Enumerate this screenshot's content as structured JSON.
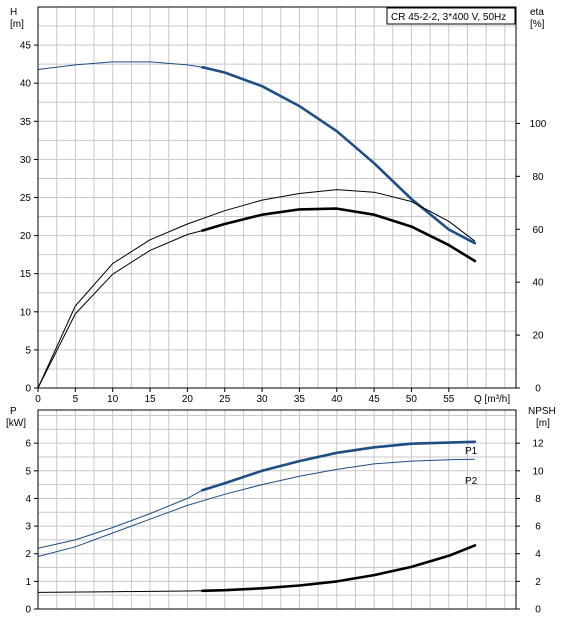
{
  "chart_data": [
    {
      "type": "line",
      "panel": "upper",
      "title": "CR 45-2-2, 3*400 V, 50Hz",
      "xlabel": "Q [m³/h]",
      "ylabel_left_name": "H",
      "ylabel_left_unit": "[m]",
      "ylabel_right_name": "eta",
      "ylabel_right_unit": "[%]",
      "xlim": [
        0,
        64
      ],
      "ylim_left": [
        0,
        50
      ],
      "ylim_right": [
        0,
        144
      ],
      "x_ticks": [
        "0",
        "5",
        "10",
        "15",
        "20",
        "25",
        "30",
        "35",
        "40",
        "45",
        "50",
        "55"
      ],
      "y_left_ticks": [
        "0",
        "5",
        "10",
        "15",
        "20",
        "25",
        "30",
        "35",
        "40",
        "45"
      ],
      "y_right_ticks": [
        "0",
        "20",
        "40",
        "60",
        "80",
        "100"
      ],
      "grid": true,
      "series": [
        {
          "name": "",
          "axis": "left",
          "color": "#1f4e85",
          "x": [
            0,
            5,
            10,
            15,
            20,
            22,
            25,
            30,
            35,
            40,
            45,
            50,
            55,
            58.5
          ],
          "y": [
            41.8,
            42.4,
            42.8,
            42.8,
            42.4,
            42.1,
            41.4,
            39.6,
            37.0,
            33.7,
            29.5,
            24.8,
            20.8,
            19.0
          ],
          "bold_from": 22
        },
        {
          "name": "",
          "axis": "right",
          "color": "#000000",
          "x": [
            0,
            5,
            10,
            15,
            20,
            22,
            25,
            30,
            35,
            40,
            45,
            50,
            55,
            58.5
          ],
          "y": [
            0,
            28,
            43,
            52,
            58,
            59.5,
            62,
            65.5,
            67.5,
            67.8,
            65.5,
            61,
            54,
            48
          ],
          "bold_from": 22
        },
        {
          "name": "",
          "axis": "right",
          "color": "#000000",
          "x": [
            0,
            5,
            10,
            15,
            20,
            25,
            30,
            35,
            40,
            45,
            50,
            55,
            58.5
          ],
          "y": [
            0,
            31,
            47,
            56,
            62,
            67,
            71,
            73.5,
            75,
            74,
            70.5,
            63,
            55.5
          ],
          "bold_from": null
        }
      ]
    },
    {
      "type": "line",
      "panel": "lower",
      "ylabel_left_name": "P",
      "ylabel_left_unit": "[kW]",
      "ylabel_right_name": "NPSH",
      "ylabel_right_unit": "[m]",
      "xlim": [
        0,
        64
      ],
      "ylim_left": [
        0,
        7.2
      ],
      "ylim_right": [
        0,
        14.4
      ],
      "y_left_ticks": [
        "0",
        "1",
        "2",
        "3",
        "4",
        "5",
        "6"
      ],
      "y_right_ticks": [
        "0",
        "2",
        "4",
        "6",
        "8",
        "10",
        "12"
      ],
      "grid": true,
      "series": [
        {
          "name": "P1",
          "axis": "left",
          "color": "#1f4e85",
          "x": [
            0,
            5,
            10,
            15,
            20,
            22,
            25,
            30,
            35,
            40,
            45,
            50,
            55,
            58.5
          ],
          "y": [
            2.2,
            2.5,
            2.95,
            3.45,
            4.0,
            4.3,
            4.55,
            5.0,
            5.35,
            5.65,
            5.85,
            5.98,
            6.02,
            6.05
          ],
          "bold_from": 22
        },
        {
          "name": "P2",
          "axis": "left",
          "color": "#1f4e85",
          "x": [
            0,
            5,
            10,
            15,
            20,
            25,
            30,
            35,
            40,
            45,
            50,
            55,
            58.5
          ],
          "y": [
            1.9,
            2.25,
            2.75,
            3.25,
            3.75,
            4.15,
            4.5,
            4.8,
            5.05,
            5.25,
            5.35,
            5.4,
            5.42
          ],
          "bold_from": null
        },
        {
          "name": "",
          "axis": "right",
          "color": "#000000",
          "x": [
            0,
            10,
            20,
            22,
            25,
            30,
            35,
            40,
            45,
            50,
            55,
            58.5
          ],
          "y": [
            1.2,
            1.25,
            1.3,
            1.32,
            1.36,
            1.5,
            1.7,
            2.0,
            2.45,
            3.05,
            3.85,
            4.6
          ],
          "bold_from": 22
        }
      ]
    }
  ]
}
